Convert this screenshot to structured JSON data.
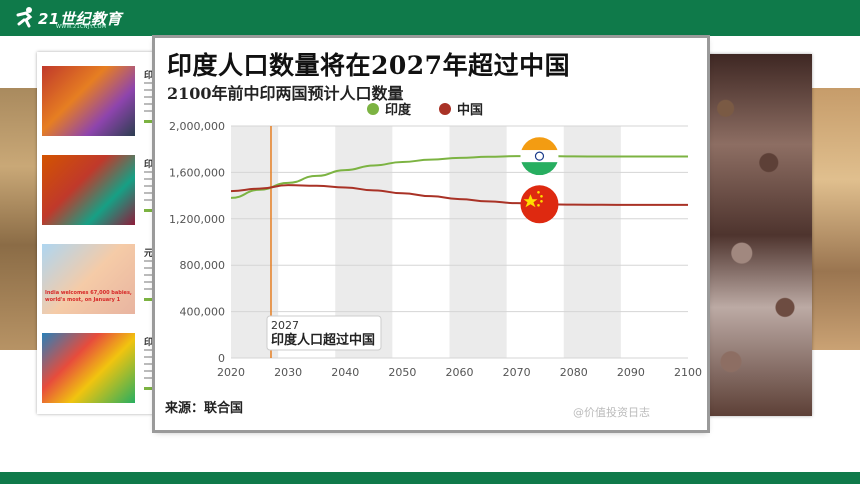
{
  "header": {
    "brand": "21世纪教育",
    "url": "WWW.21CNJY.COM"
  },
  "news": [
    {
      "title": "印",
      "caption": ""
    },
    {
      "title": "印",
      "caption": ""
    },
    {
      "title": "元",
      "caption": "India welcomes 67,000 babies, world's most, on January 1"
    },
    {
      "title": "印",
      "caption": ""
    }
  ],
  "card": {
    "title": "印度人口数量将在2027年超过中国",
    "subtitle": "2100年前中印两国预计人口数量",
    "source": "来源：联合国",
    "watermark": "@价值投资日志"
  },
  "colors": {
    "india": "#7cb342",
    "china": "#a93226",
    "annotation_line": "#e67e22",
    "band": "#ebebeb",
    "green_banner": "#0f7a4a"
  },
  "chart_data": {
    "type": "line",
    "title": "印度人口数量将在2027年超过中国",
    "subtitle": "2100年前中印两国预计人口数量",
    "legend_position": "top-center",
    "xlim": [
      2020,
      2100
    ],
    "ylim": [
      0,
      2000000
    ],
    "x_ticks": [
      "2020",
      "2030",
      "2040",
      "2050",
      "2060",
      "2070",
      "2080",
      "2090",
      "2100"
    ],
    "y_ticks": [
      "0",
      "400,000",
      "800,000",
      "1,200,000",
      "1,600,000",
      "2,000,000"
    ],
    "y_tick_values": [
      0,
      400000,
      800000,
      1200000,
      1600000,
      2000000
    ],
    "x_tick_values": [
      2020,
      2030,
      2040,
      2050,
      2060,
      2070,
      2080,
      2090,
      2100
    ],
    "grid": true,
    "series": [
      {
        "name": "印度",
        "x": [
          2020,
          2025,
          2030,
          2035,
          2040,
          2045,
          2050,
          2055,
          2060,
          2065,
          2070,
          2075,
          2080,
          2085,
          2090,
          2095,
          2100
        ],
        "values": [
          1380000,
          1450000,
          1510000,
          1570000,
          1620000,
          1660000,
          1690000,
          1710000,
          1725000,
          1735000,
          1740000,
          1740000,
          1738000,
          1737000,
          1737000,
          1737000,
          1737000
        ]
      },
      {
        "name": "中国",
        "x": [
          2020,
          2025,
          2030,
          2035,
          2040,
          2045,
          2050,
          2055,
          2060,
          2065,
          2070,
          2075,
          2080,
          2085,
          2090,
          2095,
          2100
        ],
        "values": [
          1439000,
          1460000,
          1490000,
          1485000,
          1470000,
          1445000,
          1420000,
          1395000,
          1370000,
          1350000,
          1335000,
          1325000,
          1322000,
          1321000,
          1320000,
          1320000,
          1320000
        ]
      }
    ],
    "annotation": {
      "x": 2027,
      "label_year": "2027",
      "label_text": "印度人口超过中国"
    }
  }
}
